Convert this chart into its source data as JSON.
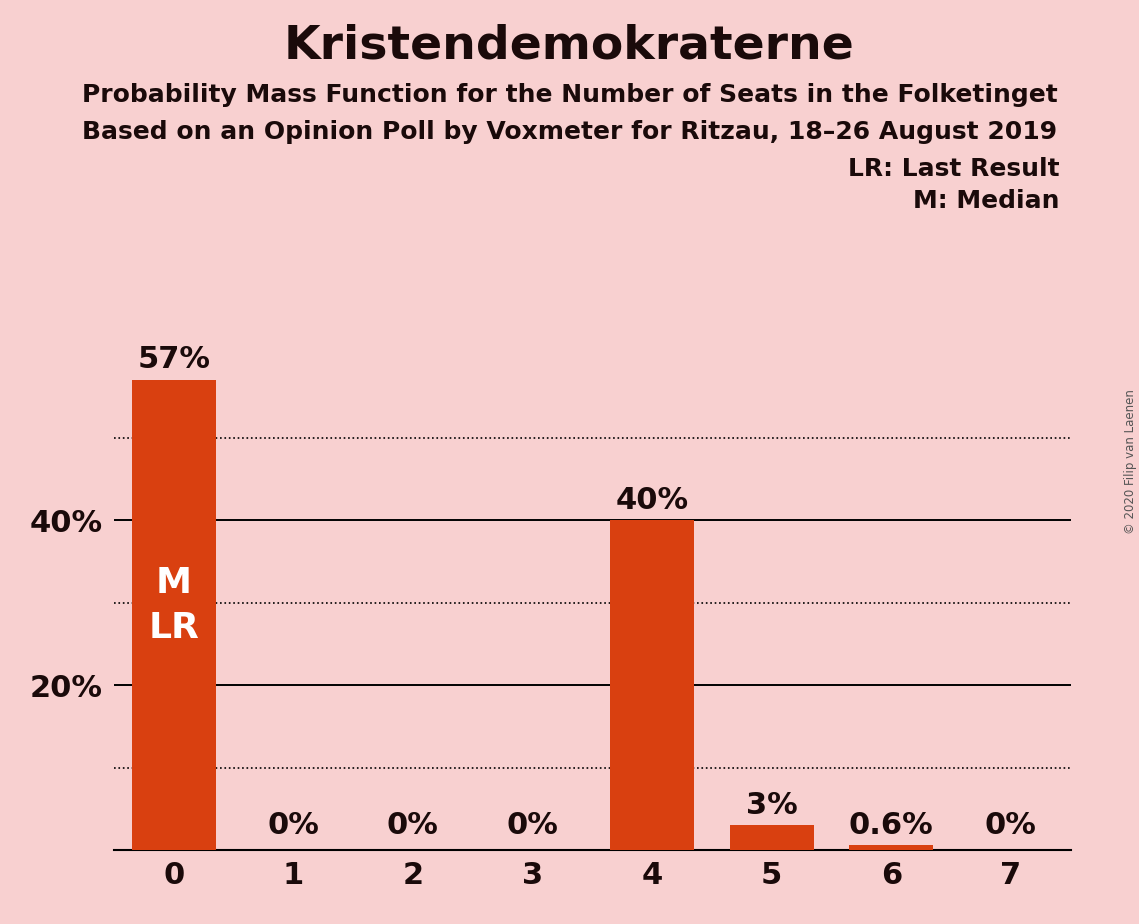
{
  "title": "Kristendemokraterne",
  "subtitle1": "Probability Mass Function for the Number of Seats in the Folketinget",
  "subtitle2": "Based on an Opinion Poll by Voxmeter for Ritzau, 18–26 August 2019",
  "copyright": "© 2020 Filip van Laenen",
  "categories": [
    0,
    1,
    2,
    3,
    4,
    5,
    6,
    7
  ],
  "values": [
    0.57,
    0.0,
    0.0,
    0.0,
    0.4,
    0.03,
    0.006,
    0.0
  ],
  "bar_color": "#d94010",
  "background_color": "#f8d0d0",
  "label_values": [
    "57%",
    "0%",
    "0%",
    "0%",
    "40%",
    "3%",
    "0.6%",
    "0%"
  ],
  "yticks": [
    0.0,
    0.2,
    0.4
  ],
  "ytick_labels": [
    "",
    "20%",
    "40%"
  ],
  "solid_gridlines": [
    0.2,
    0.4
  ],
  "dotted_gridlines": [
    0.1,
    0.3,
    0.5
  ],
  "ylim": [
    0,
    0.65
  ],
  "legend_line1": "LR: Last Result",
  "legend_line2": "M: Median",
  "title_fontsize": 34,
  "subtitle_fontsize": 18,
  "bar_label_fontsize": 22,
  "tick_fontsize": 22,
  "inner_label_fontsize": 26,
  "inner_label_color": "#ffffff",
  "text_color": "#1a0a0a",
  "copyright_color": "#555555"
}
